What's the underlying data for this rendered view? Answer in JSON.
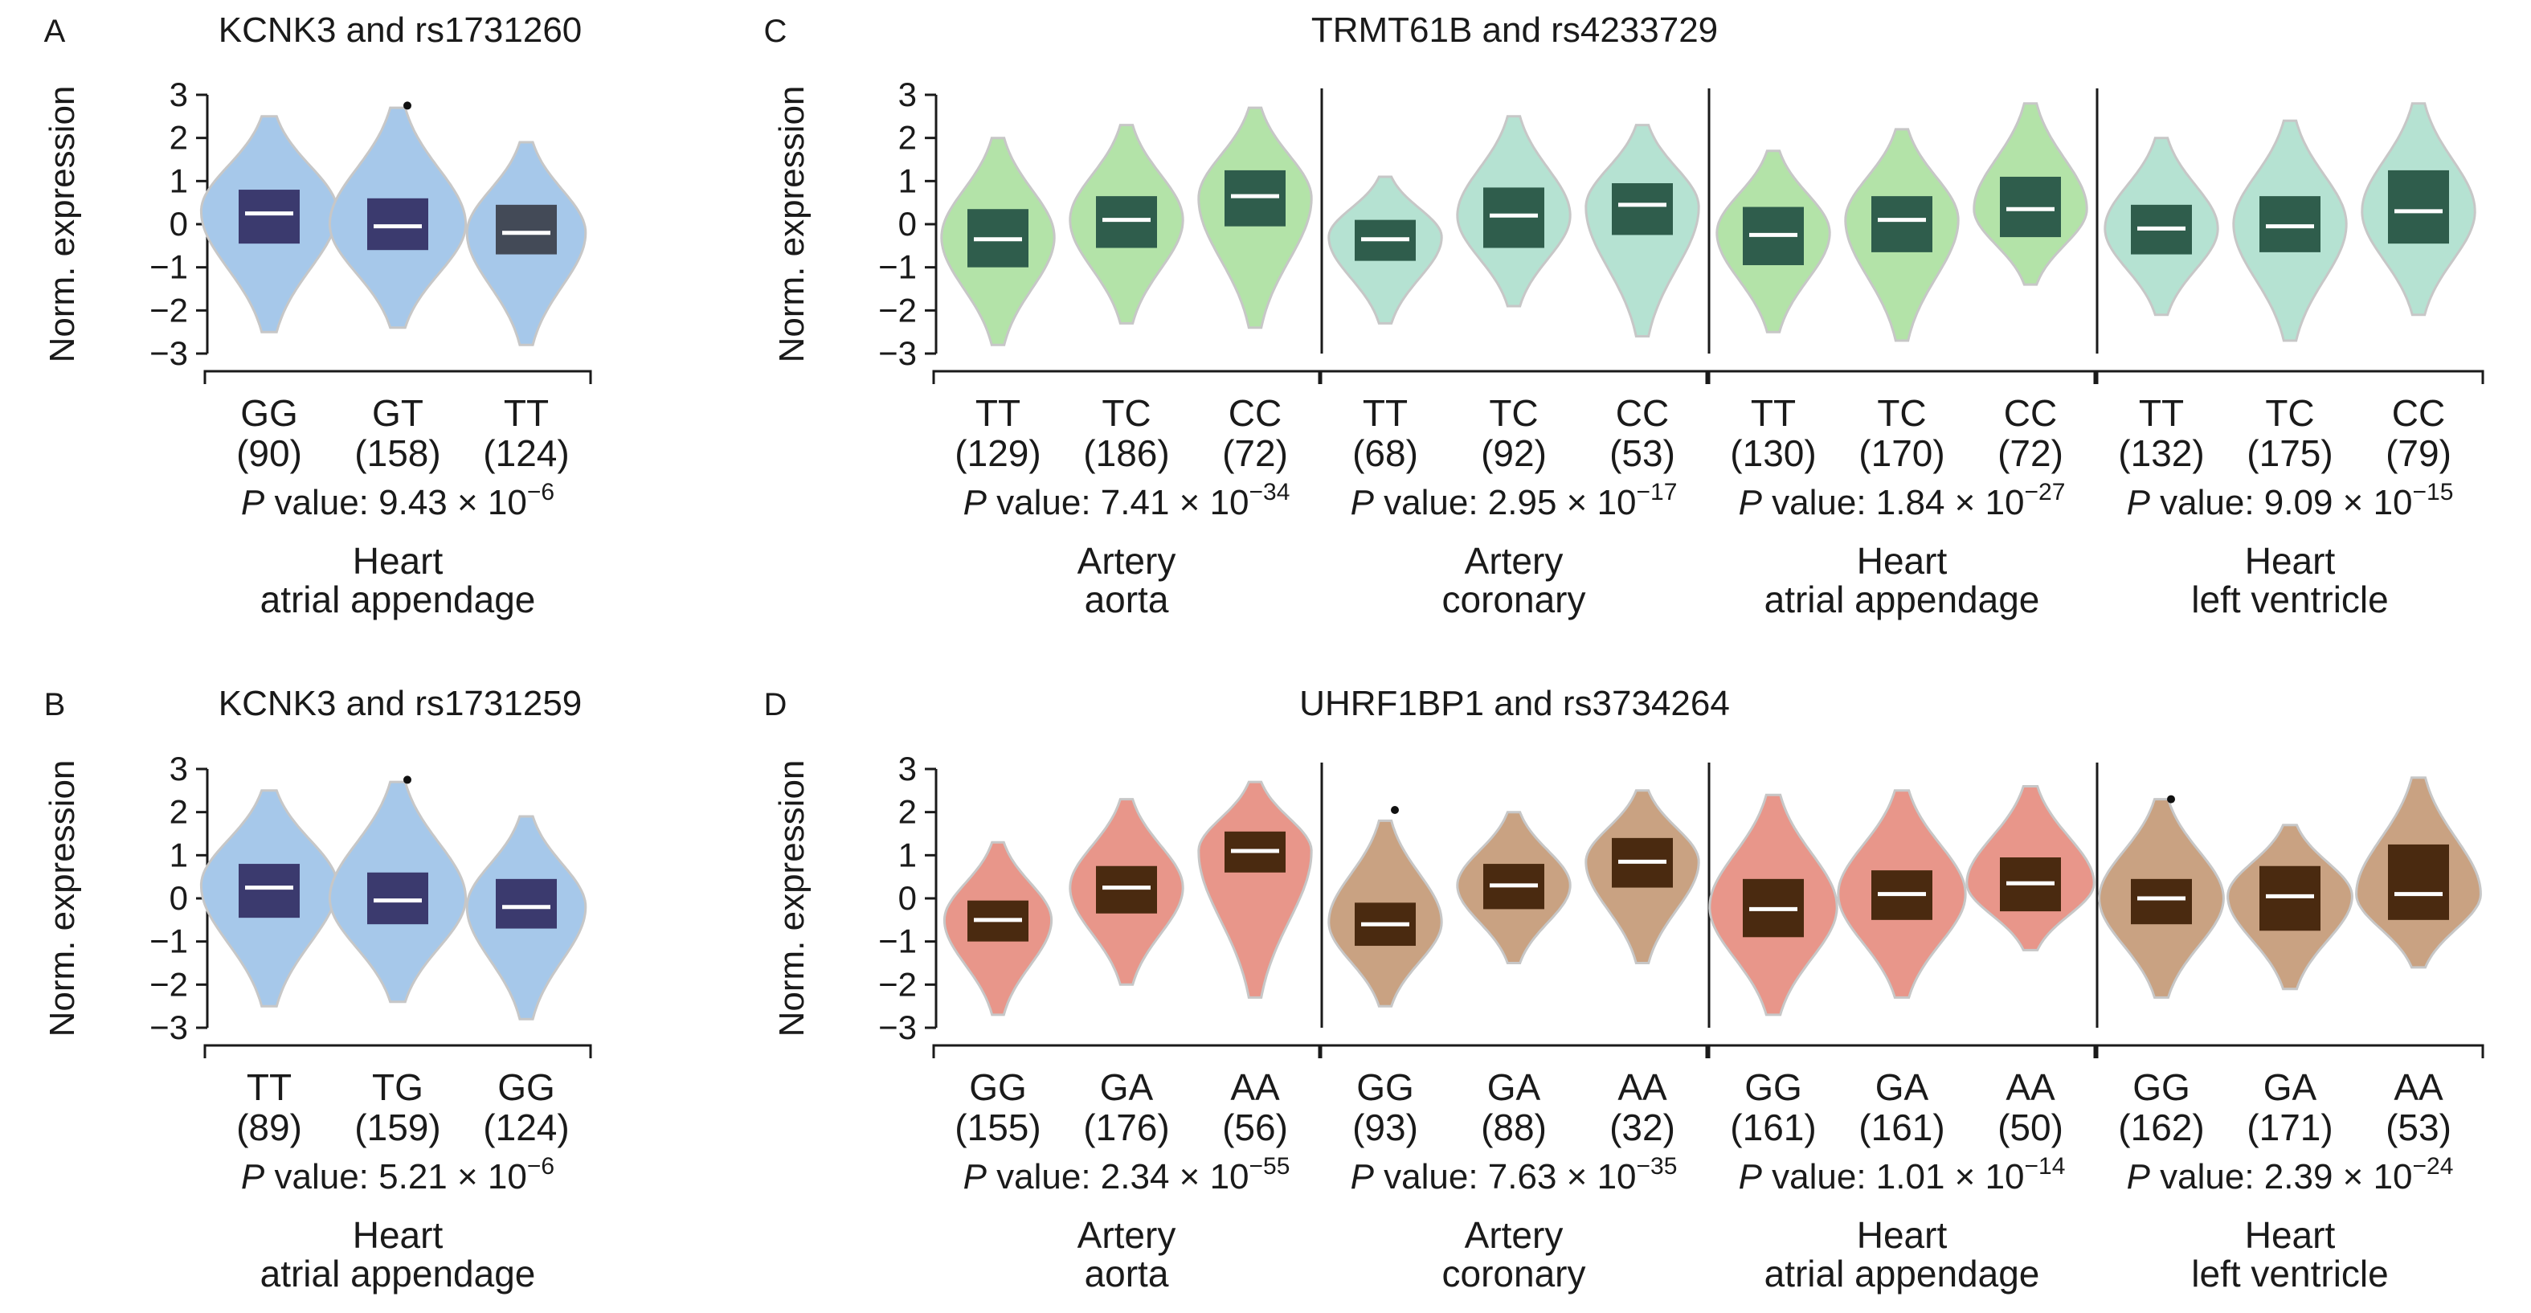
{
  "y_axis_label": "Norm. expression",
  "y_ticks": [
    "3",
    "2",
    "1",
    "0",
    "-1",
    "-2",
    "-3"
  ],
  "chart_data": [
    {
      "type": "violin",
      "panel": "A",
      "title": "KCNK3 and rs1731260",
      "ylabel": "Norm. expression",
      "ylim": [
        -3,
        3
      ],
      "violin_color": "#a6c8ea",
      "box_color": "#3b3a6e",
      "tissues": [
        {
          "name_line1": "Heart",
          "name_line2": "atrial appendage",
          "p_value_label": "P",
          "p_value_text": " value: 9.43 × 10",
          "p_value_exp": "−6",
          "violin_color": "#a6c8ea",
          "box_color": "#3b3a6e",
          "groups": [
            {
              "genotype": "GG",
              "n_label": "(90)",
              "median": 0.25,
              "q1": -0.45,
              "q3": 0.8,
              "min": -2.5,
              "max": 2.5,
              "peak": 0.3,
              "spread": 0.94
            },
            {
              "genotype": "GT",
              "n_label": "(158)",
              "median": -0.05,
              "q1": -0.6,
              "q3": 0.6,
              "min": -2.4,
              "max": 2.7,
              "peak": 0.0,
              "spread": 0.94,
              "outliers": [
                2.75
              ]
            },
            {
              "genotype": "TT",
              "n_label": "(124)",
              "median": -0.2,
              "q1": -0.7,
              "q3": 0.45,
              "min": -2.8,
              "max": 1.9,
              "peak": -0.2,
              "spread": 0.82,
              "box_color": "#434a57"
            }
          ]
        }
      ]
    },
    {
      "type": "violin",
      "panel": "B",
      "title": "KCNK3 and rs1731259",
      "ylabel": "Norm. expression",
      "ylim": [
        -3,
        3
      ],
      "violin_color": "#a6c8ea",
      "box_color": "#3b3a6e",
      "tissues": [
        {
          "name_line1": "Heart",
          "name_line2": "atrial appendage",
          "p_value_label": "P",
          "p_value_text": " value: 5.21 × 10",
          "p_value_exp": "−6",
          "violin_color": "#a6c8ea",
          "box_color": "#3b3a6e",
          "groups": [
            {
              "genotype": "TT",
              "n_label": "(89)",
              "median": 0.25,
              "q1": -0.45,
              "q3": 0.8,
              "min": -2.5,
              "max": 2.5,
              "peak": 0.3,
              "spread": 0.94
            },
            {
              "genotype": "TG",
              "n_label": "(159)",
              "median": -0.05,
              "q1": -0.6,
              "q3": 0.6,
              "min": -2.4,
              "max": 2.7,
              "peak": 0.0,
              "spread": 0.94,
              "outliers": [
                2.75
              ]
            },
            {
              "genotype": "GG",
              "n_label": "(124)",
              "median": -0.2,
              "q1": -0.7,
              "q3": 0.45,
              "min": -2.8,
              "max": 1.9,
              "peak": -0.2,
              "spread": 0.82
            }
          ]
        }
      ]
    },
    {
      "type": "violin",
      "panel": "C",
      "title": "TRMT61B and rs4233729",
      "ylabel": "Norm. expression",
      "ylim": [
        -3,
        3
      ],
      "box_color": "#2f5d4c",
      "tissues": [
        {
          "name_line1": "Artery",
          "name_line2": "aorta",
          "p_value_label": "P",
          "p_value_text": " value: 7.41 × 10",
          "p_value_exp": "−34",
          "violin_color": "#b3e3a8",
          "box_color": "#2f5d4c",
          "groups": [
            {
              "genotype": "TT",
              "n_label": "(129)",
              "median": -0.35,
              "q1": -1.0,
              "q3": 0.35,
              "min": -2.8,
              "max": 2.0,
              "peak": -0.3,
              "spread": 0.78
            },
            {
              "genotype": "TC",
              "n_label": "(186)",
              "median": 0.1,
              "q1": -0.55,
              "q3": 0.65,
              "min": -2.3,
              "max": 2.3,
              "peak": 0.1,
              "spread": 0.78
            },
            {
              "genotype": "CC",
              "n_label": "(72)",
              "median": 0.65,
              "q1": -0.05,
              "q3": 1.25,
              "min": -2.4,
              "max": 2.7,
              "peak": 0.6,
              "spread": 0.78
            }
          ]
        },
        {
          "name_line1": "Artery",
          "name_line2": "coronary",
          "p_value_label": "P",
          "p_value_text": " value: 2.95 × 10",
          "p_value_exp": "−17",
          "violin_color": "#b5e2d2",
          "box_color": "#2f5d4c",
          "groups": [
            {
              "genotype": "TT",
              "n_label": "(68)",
              "median": -0.35,
              "q1": -0.85,
              "q3": 0.1,
              "min": -2.3,
              "max": 1.1,
              "peak": -0.3,
              "spread": 0.78
            },
            {
              "genotype": "TC",
              "n_label": "(92)",
              "median": 0.2,
              "q1": -0.55,
              "q3": 0.85,
              "min": -1.9,
              "max": 2.5,
              "peak": 0.2,
              "spread": 0.78
            },
            {
              "genotype": "CC",
              "n_label": "(53)",
              "median": 0.45,
              "q1": -0.25,
              "q3": 0.95,
              "min": -2.6,
              "max": 2.3,
              "peak": 0.4,
              "spread": 0.78
            }
          ]
        },
        {
          "name_line1": "Heart",
          "name_line2": "atrial appendage",
          "p_value_label": "P",
          "p_value_text": " value: 1.84 × 10",
          "p_value_exp": "−27",
          "violin_color": "#b3e3a8",
          "box_color": "#2f5d4c",
          "groups": [
            {
              "genotype": "TT",
              "n_label": "(130)",
              "median": -0.25,
              "q1": -0.95,
              "q3": 0.4,
              "min": -2.5,
              "max": 1.7,
              "peak": -0.2,
              "spread": 0.78
            },
            {
              "genotype": "TC",
              "n_label": "(170)",
              "median": 0.1,
              "q1": -0.65,
              "q3": 0.65,
              "min": -2.7,
              "max": 2.2,
              "peak": 0.1,
              "spread": 0.78
            },
            {
              "genotype": "CC",
              "n_label": "(72)",
              "median": 0.35,
              "q1": -0.3,
              "q3": 1.1,
              "min": -1.4,
              "max": 2.8,
              "peak": 0.35,
              "spread": 0.78
            }
          ]
        },
        {
          "name_line1": "Heart",
          "name_line2": "left ventricle",
          "p_value_label": "P",
          "p_value_text": " value: 9.09 × 10",
          "p_value_exp": "−15",
          "violin_color": "#b5e2d2",
          "box_color": "#2f5d4c",
          "groups": [
            {
              "genotype": "TT",
              "n_label": "(132)",
              "median": -0.1,
              "q1": -0.7,
              "q3": 0.45,
              "min": -2.1,
              "max": 2.0,
              "peak": -0.1,
              "spread": 0.78
            },
            {
              "genotype": "TC",
              "n_label": "(175)",
              "median": -0.05,
              "q1": -0.65,
              "q3": 0.65,
              "min": -2.7,
              "max": 2.4,
              "peak": 0.0,
              "spread": 0.78
            },
            {
              "genotype": "CC",
              "n_label": "(79)",
              "median": 0.3,
              "q1": -0.45,
              "q3": 1.25,
              "min": -2.1,
              "max": 2.8,
              "peak": 0.3,
              "spread": 0.78
            }
          ]
        }
      ]
    },
    {
      "type": "violin",
      "panel": "D",
      "title": "UHRF1BP1 and rs3734264",
      "ylabel": "Norm. expression",
      "ylim": [
        -3,
        3
      ],
      "box_color": "#4a2a10",
      "tissues": [
        {
          "name_line1": "Artery",
          "name_line2": "aorta",
          "p_value_label": "P",
          "p_value_text": " value: 2.34 × 10",
          "p_value_exp": "−55",
          "violin_color": "#e8968a",
          "box_color": "#4a2a10",
          "groups": [
            {
              "genotype": "GG",
              "n_label": "(155)",
              "median": -0.5,
              "q1": -1.0,
              "q3": -0.05,
              "min": -2.7,
              "max": 1.3,
              "peak": -0.5,
              "spread": 0.74
            },
            {
              "genotype": "GA",
              "n_label": "(176)",
              "median": 0.25,
              "q1": -0.35,
              "q3": 0.75,
              "min": -2.0,
              "max": 2.3,
              "peak": 0.25,
              "spread": 0.78
            },
            {
              "genotype": "AA",
              "n_label": "(56)",
              "median": 1.1,
              "q1": 0.6,
              "q3": 1.55,
              "min": -2.3,
              "max": 2.7,
              "peak": 1.1,
              "spread": 0.78
            }
          ]
        },
        {
          "name_line1": "Artery",
          "name_line2": "coronary",
          "p_value_label": "P",
          "p_value_text": " value: 7.63 × 10",
          "p_value_exp": "−35",
          "violin_color": "#c9a282",
          "box_color": "#4a2a10",
          "groups": [
            {
              "genotype": "GG",
              "n_label": "(93)",
              "median": -0.6,
              "q1": -1.1,
              "q3": -0.1,
              "min": -2.5,
              "max": 1.8,
              "peak": -0.55,
              "spread": 0.78,
              "outliers": [
                2.05
              ]
            },
            {
              "genotype": "GA",
              "n_label": "(88)",
              "median": 0.3,
              "q1": -0.25,
              "q3": 0.8,
              "min": -1.5,
              "max": 2.0,
              "peak": 0.3,
              "spread": 0.78
            },
            {
              "genotype": "AA",
              "n_label": "(32)",
              "median": 0.85,
              "q1": 0.25,
              "q3": 1.4,
              "min": -1.5,
              "max": 2.5,
              "peak": 0.85,
              "spread": 0.78
            }
          ]
        },
        {
          "name_line1": "Heart",
          "name_line2": "atrial appendage",
          "p_value_label": "P",
          "p_value_text": " value: 1.01 × 10",
          "p_value_exp": "−14",
          "violin_color": "#e8968a",
          "box_color": "#4a2a10",
          "groups": [
            {
              "genotype": "GG",
              "n_label": "(161)",
              "median": -0.25,
              "q1": -0.9,
              "q3": 0.45,
              "min": -2.7,
              "max": 2.4,
              "peak": -0.2,
              "spread": 0.88
            },
            {
              "genotype": "GA",
              "n_label": "(161)",
              "median": 0.1,
              "q1": -0.5,
              "q3": 0.65,
              "min": -2.3,
              "max": 2.5,
              "peak": 0.1,
              "spread": 0.88
            },
            {
              "genotype": "AA",
              "n_label": "(50)",
              "median": 0.35,
              "q1": -0.3,
              "q3": 0.95,
              "min": -1.2,
              "max": 2.6,
              "peak": 0.35,
              "spread": 0.88
            }
          ]
        },
        {
          "name_line1": "Heart",
          "name_line2": "left ventricle",
          "p_value_label": "P",
          "p_value_text": " value: 2.39 × 10",
          "p_value_exp": "−24",
          "violin_color": "#c9a282",
          "box_color": "#4a2a10",
          "groups": [
            {
              "genotype": "GG",
              "n_label": "(162)",
              "median": 0.0,
              "q1": -0.6,
              "q3": 0.45,
              "min": -2.3,
              "max": 2.3,
              "peak": 0.0,
              "spread": 0.86,
              "outliers": [
                2.3
              ]
            },
            {
              "genotype": "GA",
              "n_label": "(171)",
              "median": 0.05,
              "q1": -0.75,
              "q3": 0.75,
              "min": -2.1,
              "max": 1.7,
              "peak": 0.05,
              "spread": 0.86
            },
            {
              "genotype": "AA",
              "n_label": "(53)",
              "median": 0.1,
              "q1": -0.5,
              "q3": 1.25,
              "min": -1.6,
              "max": 2.8,
              "peak": 0.1,
              "spread": 0.86
            }
          ]
        }
      ]
    }
  ]
}
